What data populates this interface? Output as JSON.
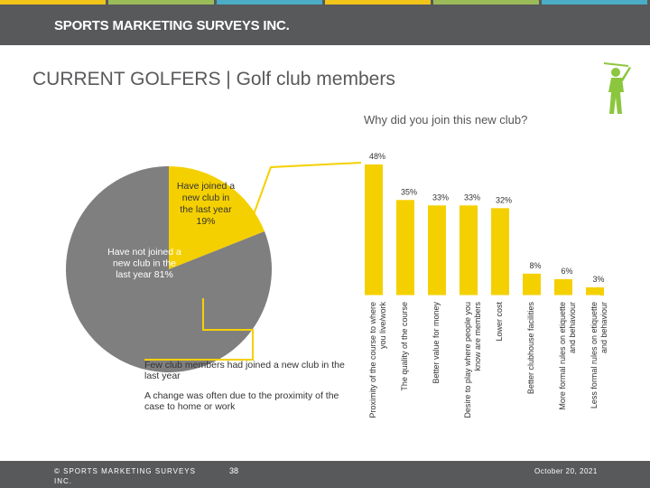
{
  "header": {
    "brand": "SPORTS MARKETING SURVEYS INC.",
    "stripe_colors": [
      "#f0c419",
      "#9bbb59",
      "#4bacc6",
      "#f0c419",
      "#9bbb59",
      "#4bacc6"
    ]
  },
  "slide": {
    "title": "CURRENT GOLFERS | Golf club members",
    "question": "Why did you join this new club?"
  },
  "icons": {
    "golfer": "golfer-icon"
  },
  "colors": {
    "accent": "#f5d000",
    "pie_grey": "#7f7f7f",
    "bar": "#f5d000"
  },
  "chart_data": [
    {
      "type": "pie",
      "slices": [
        {
          "label": "Have joined a new club in the last year",
          "value_label": "19%",
          "value": 19
        },
        {
          "label": "Have not joined a new club in the last year",
          "value_label": "81%",
          "value": 81
        }
      ]
    },
    {
      "type": "bar",
      "categories": [
        "Proximity of the course to where you live/work",
        "The quality of the course",
        "Better value for money",
        "Desire to play where people you know are members",
        "Lower cost",
        "Better clubhouse facilities",
        "More formal rules on etiquette and behaviour",
        "Less formal rules on etiquette and behaviour"
      ],
      "values": [
        48,
        35,
        33,
        33,
        32,
        8,
        6,
        3
      ],
      "value_labels": [
        "48%",
        "35%",
        "33%",
        "33%",
        "32%",
        "8%",
        "6%",
        "3%"
      ],
      "ylim": [
        0,
        48
      ]
    }
  ],
  "callout": {
    "line1": "Few club members had joined a new club in the last year",
    "line2": "A change was often  due to the proximity of the case to home or work"
  },
  "footer": {
    "copyright": "© SPORTS MARKETING SURVEYS INC.",
    "page": "38",
    "date": "October 20, 2021"
  }
}
